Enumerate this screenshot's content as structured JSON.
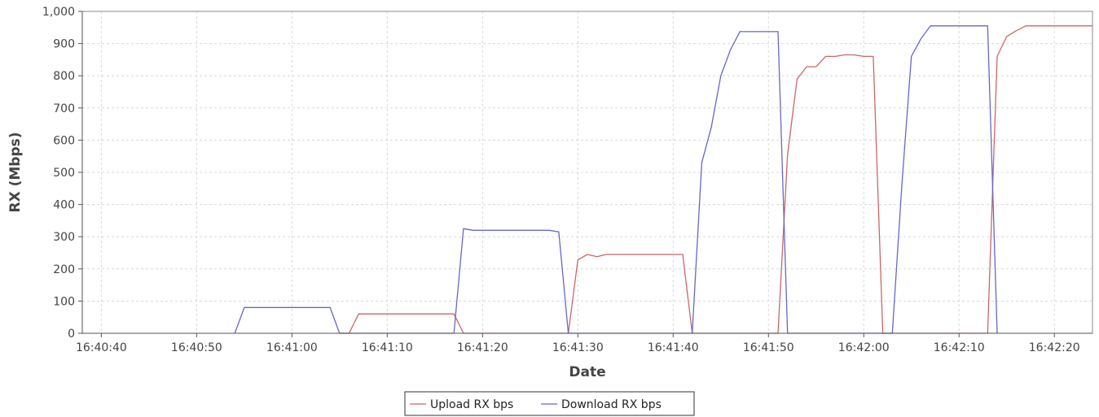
{
  "chart_data": {
    "type": "line",
    "title": "",
    "xlabel": "Date",
    "ylabel": "RX (Mbps)",
    "xlim": [
      "16:40:38",
      "16:42:24"
    ],
    "ylim": [
      0,
      1000
    ],
    "x_ticks": [
      "16:40:40",
      "16:40:50",
      "16:41:00",
      "16:41:10",
      "16:41:20",
      "16:41:30",
      "16:41:40",
      "16:41:50",
      "16:42:00",
      "16:42:10",
      "16:42:20"
    ],
    "y_ticks": [
      "0",
      "100",
      "200",
      "300",
      "400",
      "500",
      "600",
      "700",
      "800",
      "900",
      "1,000"
    ],
    "grid": true,
    "legend_position": "bottom-center",
    "series": [
      {
        "name": "Upload RX bps",
        "color": "#cc6666",
        "points": [
          [
            "16:41:05",
            0
          ],
          [
            "16:41:06",
            0
          ],
          [
            "16:41:07",
            60
          ],
          [
            "16:41:17",
            60
          ],
          [
            "16:41:18",
            0
          ],
          [
            "16:41:29",
            0
          ],
          [
            "16:41:30",
            228
          ],
          [
            "16:41:31",
            245
          ],
          [
            "16:41:32",
            238
          ],
          [
            "16:41:33",
            245
          ],
          [
            "16:41:41",
            245
          ],
          [
            "16:41:42",
            0
          ],
          [
            "16:41:51",
            0
          ],
          [
            "16:41:52",
            555
          ],
          [
            "16:41:53",
            790
          ],
          [
            "16:41:54",
            828
          ],
          [
            "16:41:55",
            828
          ],
          [
            "16:41:56",
            860
          ],
          [
            "16:41:57",
            860
          ],
          [
            "16:41:58",
            865
          ],
          [
            "16:41:59",
            865
          ],
          [
            "16:42:00",
            860
          ],
          [
            "16:42:01",
            860
          ],
          [
            "16:42:02",
            0
          ],
          [
            "16:42:13",
            0
          ],
          [
            "16:42:14",
            860
          ],
          [
            "16:42:15",
            922
          ],
          [
            "16:42:16",
            940
          ],
          [
            "16:42:17",
            955
          ],
          [
            "16:42:24",
            955
          ]
        ]
      },
      {
        "name": "Download RX bps",
        "color": "#6666cc",
        "points": [
          [
            "16:40:54",
            0
          ],
          [
            "16:40:55",
            80
          ],
          [
            "16:41:04",
            80
          ],
          [
            "16:41:05",
            0
          ],
          [
            "16:41:17",
            0
          ],
          [
            "16:41:18",
            325
          ],
          [
            "16:41:19",
            320
          ],
          [
            "16:41:27",
            320
          ],
          [
            "16:41:28",
            315
          ],
          [
            "16:41:29",
            0
          ],
          [
            "16:41:42",
            0
          ],
          [
            "16:41:43",
            530
          ],
          [
            "16:41:44",
            640
          ],
          [
            "16:41:45",
            800
          ],
          [
            "16:41:46",
            880
          ],
          [
            "16:41:47",
            937
          ],
          [
            "16:41:51",
            937
          ],
          [
            "16:41:52",
            0
          ],
          [
            "16:42:03",
            0
          ],
          [
            "16:42:04",
            460
          ],
          [
            "16:42:05",
            860
          ],
          [
            "16:42:06",
            915
          ],
          [
            "16:42:07",
            955
          ],
          [
            "16:42:13",
            955
          ],
          [
            "16:42:14",
            0
          ]
        ]
      }
    ]
  }
}
